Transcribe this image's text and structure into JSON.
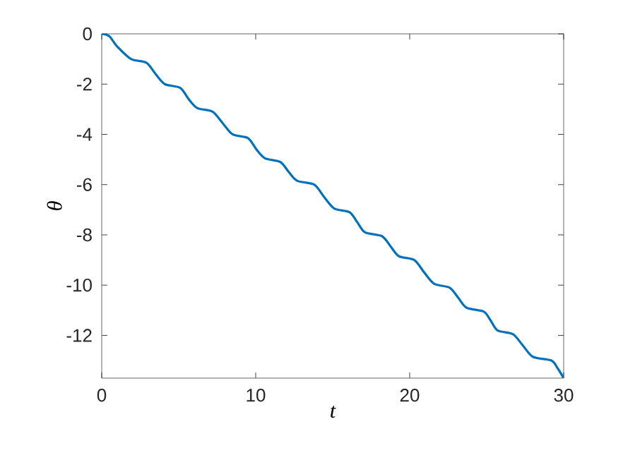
{
  "chart_data": {
    "type": "line",
    "xlabel": "t",
    "ylabel": "θ",
    "xlim": [
      0,
      30
    ],
    "ylim": [
      -13.7,
      0
    ],
    "xticks": [
      0,
      10,
      20,
      30
    ],
    "yticks": [
      -12,
      -10,
      -8,
      -6,
      -4,
      -2,
      0
    ],
    "series": [
      {
        "color": "#0072bd",
        "x": [
          0,
          0.5,
          1.0,
          1.9,
          2.9,
          3.5,
          4.1,
          5.1,
          5.65,
          6.2,
          7.2,
          7.85,
          8.5,
          9.5,
          10.05,
          10.6,
          11.6,
          12.15,
          12.7,
          13.8,
          14.45,
          15.1,
          16.1,
          16.6,
          17.1,
          18.2,
          18.75,
          19.3,
          20.3,
          20.95,
          21.6,
          22.6,
          23.15,
          23.7,
          24.8,
          25.25,
          25.7,
          26.7,
          27.35,
          28.0,
          29.2,
          29.6,
          30
        ],
        "values": [
          0,
          -0.1,
          -0.5,
          -1.0,
          -1.15,
          -1.6,
          -2.0,
          -2.15,
          -2.6,
          -2.95,
          -3.1,
          -3.55,
          -4.0,
          -4.15,
          -4.6,
          -4.95,
          -5.1,
          -5.5,
          -5.85,
          -6.0,
          -6.5,
          -6.95,
          -7.1,
          -7.5,
          -7.9,
          -8.05,
          -8.45,
          -8.85,
          -9.0,
          -9.5,
          -9.95,
          -10.1,
          -10.5,
          -10.9,
          -11.05,
          -11.4,
          -11.8,
          -11.95,
          -12.4,
          -12.85,
          -13.0,
          -13.3,
          -13.7
        ]
      }
    ]
  }
}
